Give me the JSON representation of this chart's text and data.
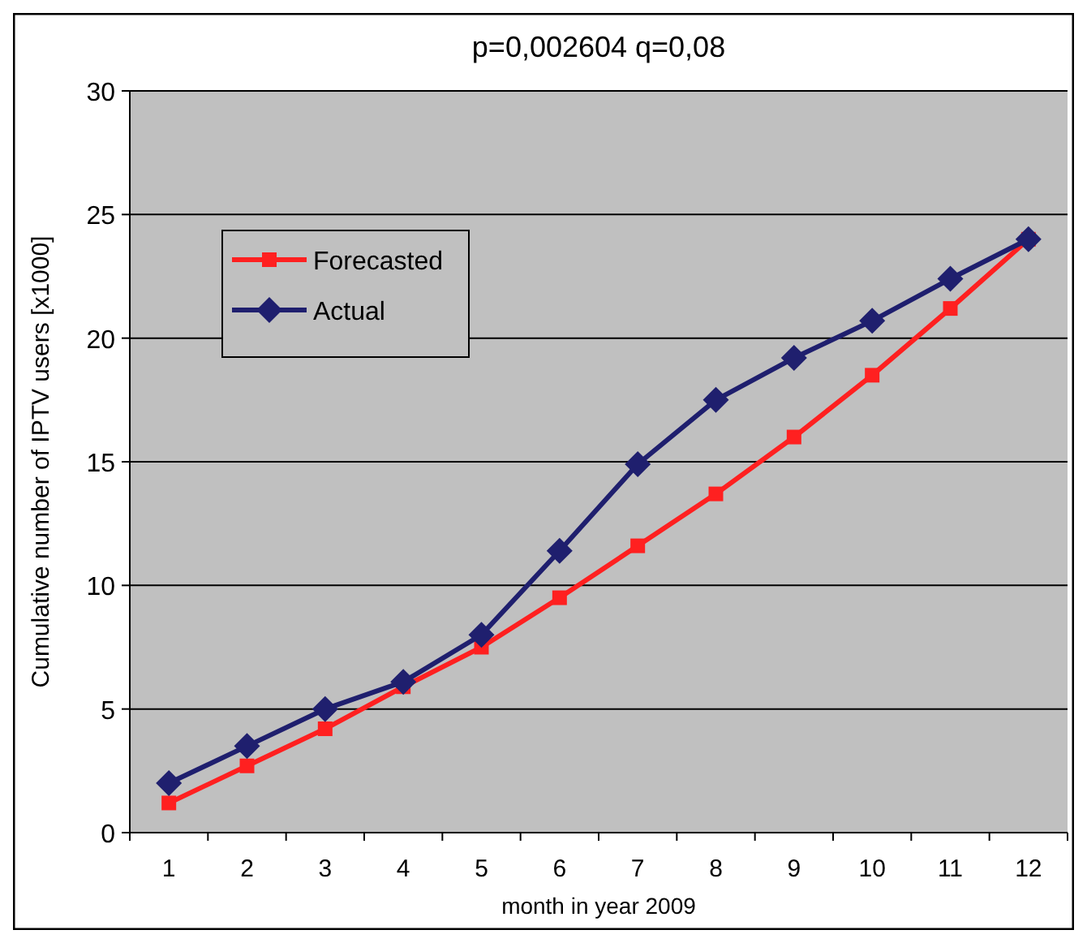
{
  "chart_data": {
    "type": "line",
    "title": "p=0,002604 q=0,08",
    "xlabel": "month in year 2009",
    "ylabel": "Cumulative number of IPTV users [x1000]",
    "x": [
      1,
      2,
      3,
      4,
      5,
      6,
      7,
      8,
      9,
      10,
      11,
      12
    ],
    "xlim": [
      0.5,
      12.5
    ],
    "xticks": [
      1,
      2,
      3,
      4,
      5,
      6,
      7,
      8,
      9,
      10,
      11,
      12
    ],
    "series": [
      {
        "name": "Forecasted",
        "color": "#ff2020",
        "marker": "square",
        "values": [
          1.2,
          2.7,
          4.2,
          5.9,
          7.5,
          9.5,
          11.6,
          13.7,
          16.0,
          18.5,
          21.2,
          24.0
        ]
      },
      {
        "name": "Actual",
        "color": "#1f1f6e",
        "marker": "diamond",
        "values": [
          2.0,
          3.5,
          5.0,
          6.1,
          8.0,
          11.4,
          14.9,
          17.5,
          19.2,
          20.7,
          22.4,
          24.0
        ]
      }
    ],
    "ylim": [
      0,
      30
    ],
    "yticks": [
      0,
      5,
      10,
      15,
      20,
      25,
      30
    ],
    "grid": "y",
    "legend": "top left"
  }
}
